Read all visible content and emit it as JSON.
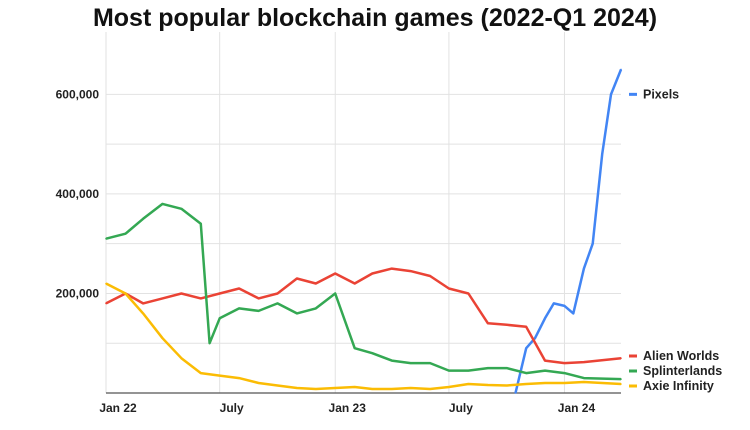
{
  "chart_data": {
    "type": "line",
    "title": "Most popular blockchain games (2022-Q1 2024)",
    "xlabel": "",
    "ylabel": "",
    "x_ticks": [
      {
        "date": "2022-01-01",
        "label": "Jan 22"
      },
      {
        "date": "2022-07-01",
        "label": "July"
      },
      {
        "date": "2023-01-01",
        "label": "Jan 23"
      },
      {
        "date": "2023-07-01",
        "label": "July"
      },
      {
        "date": "2024-01-01",
        "label": "Jan 24"
      }
    ],
    "y_ticks": [
      {
        "value": 200000,
        "label": "200,000"
      },
      {
        "value": 400000,
        "label": "400,000"
      },
      {
        "value": 600000,
        "label": "600,000"
      }
    ],
    "xlim": [
      "2022-01-01",
      "2024-03-31"
    ],
    "ylim": [
      0,
      665000
    ],
    "grid": true,
    "legend": "right, at line ends",
    "series": [
      {
        "name": "Pixels",
        "color": "#4285f4",
        "x": [
          "2023-10-15",
          "2023-11-01",
          "2023-11-15",
          "2023-12-01",
          "2023-12-15",
          "2024-01-01",
          "2024-01-15",
          "2024-02-01",
          "2024-02-15",
          "2024-03-01",
          "2024-03-15",
          "2024-03-31"
        ],
        "values": [
          0,
          90000,
          110000,
          150000,
          180000,
          175000,
          160000,
          250000,
          300000,
          480000,
          600000,
          650000
        ]
      },
      {
        "name": "Alien Worlds",
        "color": "#ea4335",
        "x": [
          "2022-01-01",
          "2022-02-01",
          "2022-03-01",
          "2022-04-01",
          "2022-05-01",
          "2022-06-01",
          "2022-07-01",
          "2022-08-01",
          "2022-09-01",
          "2022-10-01",
          "2022-11-01",
          "2022-12-01",
          "2023-01-01",
          "2023-02-01",
          "2023-03-01",
          "2023-04-01",
          "2023-05-01",
          "2023-06-01",
          "2023-07-01",
          "2023-08-01",
          "2023-09-01",
          "2023-10-01",
          "2023-11-01",
          "2023-12-01",
          "2024-01-01",
          "2024-02-01",
          "2024-03-31"
        ],
        "values": [
          180000,
          200000,
          180000,
          190000,
          200000,
          190000,
          200000,
          210000,
          190000,
          200000,
          230000,
          220000,
          240000,
          220000,
          240000,
          250000,
          245000,
          235000,
          210000,
          200000,
          140000,
          137000,
          133000,
          65000,
          60000,
          62000,
          70000
        ]
      },
      {
        "name": "Splinterlands",
        "color": "#34a853",
        "x": [
          "2022-01-01",
          "2022-02-01",
          "2022-03-01",
          "2022-04-01",
          "2022-05-01",
          "2022-06-01",
          "2022-06-15",
          "2022-07-01",
          "2022-08-01",
          "2022-09-01",
          "2022-10-01",
          "2022-11-01",
          "2022-12-01",
          "2023-01-01",
          "2023-02-01",
          "2023-03-01",
          "2023-04-01",
          "2023-05-01",
          "2023-06-01",
          "2023-07-01",
          "2023-08-01",
          "2023-09-01",
          "2023-10-01",
          "2023-11-01",
          "2023-12-01",
          "2024-01-01",
          "2024-02-01",
          "2024-03-31"
        ],
        "values": [
          310000,
          320000,
          350000,
          380000,
          370000,
          340000,
          100000,
          150000,
          170000,
          165000,
          180000,
          160000,
          170000,
          200000,
          90000,
          80000,
          65000,
          60000,
          60000,
          45000,
          45000,
          50000,
          50000,
          40000,
          45000,
          40000,
          30000,
          28000
        ]
      },
      {
        "name": "Axie Infinity",
        "color": "#fbbc04",
        "x": [
          "2022-01-01",
          "2022-02-01",
          "2022-03-01",
          "2022-04-01",
          "2022-05-01",
          "2022-06-01",
          "2022-07-01",
          "2022-08-01",
          "2022-09-01",
          "2022-10-01",
          "2022-11-01",
          "2022-12-01",
          "2023-01-01",
          "2023-02-01",
          "2023-03-01",
          "2023-04-01",
          "2023-05-01",
          "2023-06-01",
          "2023-07-01",
          "2023-08-01",
          "2023-09-01",
          "2023-10-01",
          "2023-11-01",
          "2023-12-01",
          "2024-01-01",
          "2024-02-01",
          "2024-03-31"
        ],
        "values": [
          220000,
          200000,
          160000,
          110000,
          70000,
          40000,
          35000,
          30000,
          20000,
          15000,
          10000,
          8000,
          10000,
          12000,
          8000,
          8000,
          10000,
          8000,
          12000,
          18000,
          16000,
          15000,
          18000,
          20000,
          20000,
          22000,
          18000
        ]
      }
    ]
  }
}
